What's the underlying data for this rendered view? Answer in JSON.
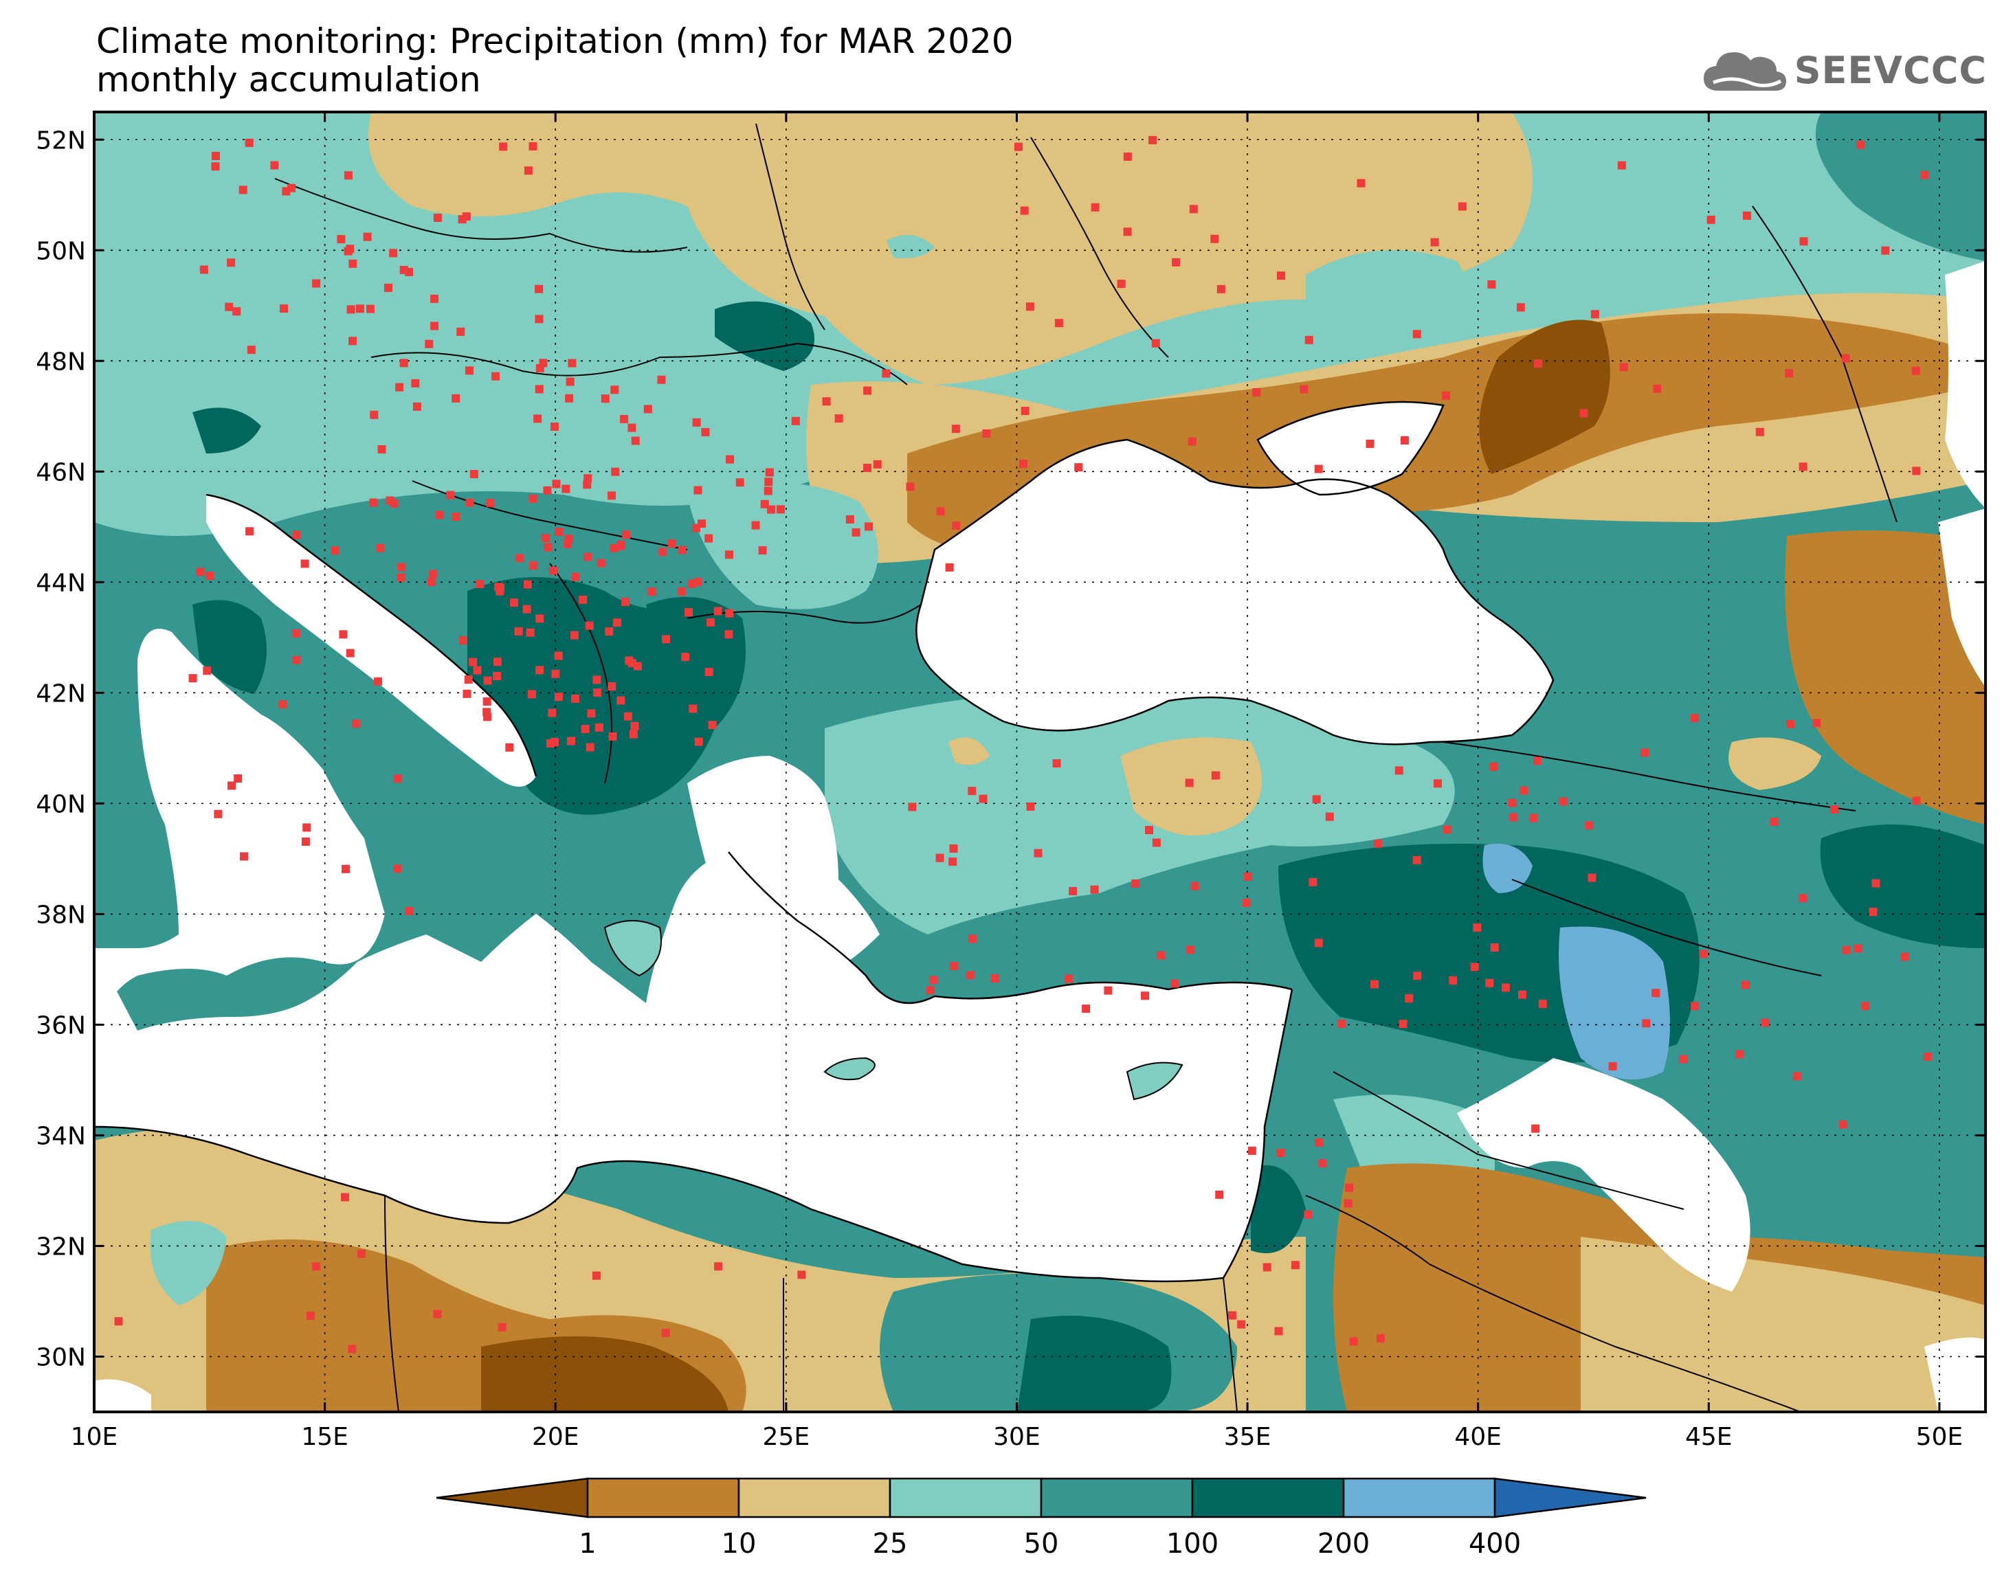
{
  "title": {
    "line1": "Climate monitoring: Precipitation (mm) for MAR 2020",
    "line2": "monthly accumulation"
  },
  "logo": {
    "text": "SEEVCCC",
    "icon": "cloud-icon",
    "color": "#6f6f6f"
  },
  "map": {
    "lon_range": [
      10,
      51
    ],
    "lat_range": [
      29,
      52.5
    ],
    "lon_ticks": [
      "10E",
      "15E",
      "20E",
      "25E",
      "30E",
      "35E",
      "40E",
      "45E",
      "50E"
    ],
    "lat_ticks": [
      "30N",
      "32N",
      "34N",
      "36N",
      "38N",
      "40N",
      "42N",
      "44N",
      "46N",
      "48N",
      "50N",
      "52N"
    ],
    "gridlines": "dotted",
    "station_color": "#ef3b3b"
  },
  "legend": {
    "thresholds": [
      "1",
      "10",
      "25",
      "50",
      "100",
      "200",
      "400"
    ],
    "colors": [
      "#8c5109",
      "#bf812d",
      "#dfc27d",
      "#80cdc1",
      "#35978f",
      "#01665e",
      "#6baed6",
      "#2166ac"
    ]
  }
}
